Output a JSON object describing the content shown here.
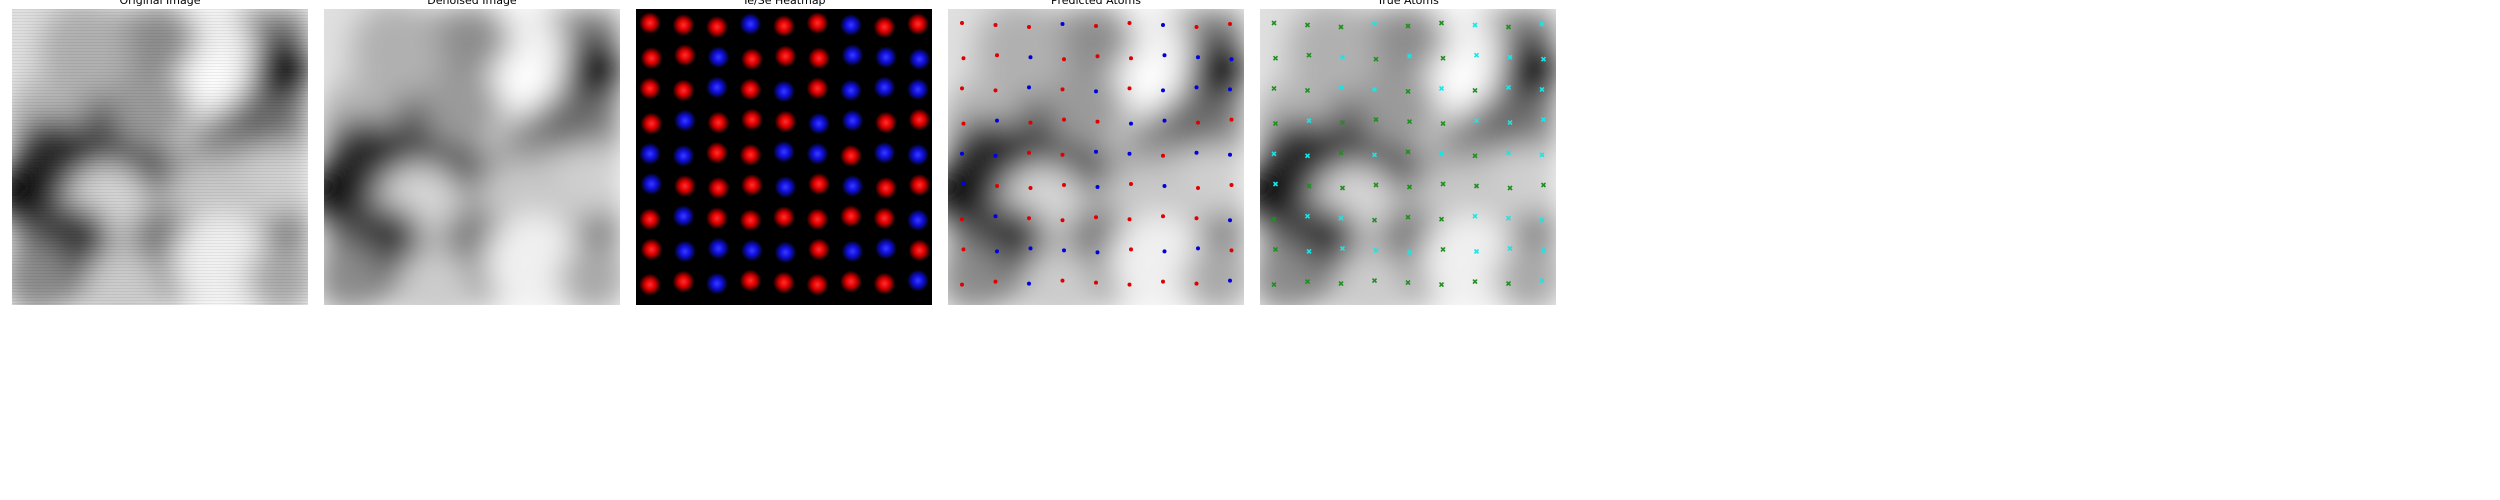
{
  "panels": [
    {
      "key": "original",
      "title": "Original Image"
    },
    {
      "key": "denoised",
      "title": "Denoised Image"
    },
    {
      "key": "heatmap",
      "title": "Te/Se Heatmap"
    },
    {
      "key": "predicted",
      "title": "Predicted Atoms"
    },
    {
      "key": "truth",
      "title": "True Atoms"
    }
  ],
  "lattice": {
    "rows": 9,
    "cols": 9,
    "heatmap_species": [
      [
        "Te",
        "Te",
        "Te",
        "Se",
        "Te",
        "Te",
        "Se",
        "Te",
        "Te"
      ],
      [
        "Te",
        "Te",
        "Se",
        "Te",
        "Te",
        "Te",
        "Se",
        "Se",
        "Se"
      ],
      [
        "Te",
        "Te",
        "Se",
        "Te",
        "Se",
        "Te",
        "Se",
        "Se",
        "Se"
      ],
      [
        "Te",
        "Se",
        "Te",
        "Te",
        "Te",
        "Se",
        "Se",
        "Te",
        "Te"
      ],
      [
        "Se",
        "Se",
        "Te",
        "Te",
        "Se",
        "Se",
        "Te",
        "Se",
        "Se"
      ],
      [
        "Se",
        "Te",
        "Te",
        "Te",
        "Se",
        "Te",
        "Se",
        "Te",
        "Te"
      ],
      [
        "Te",
        "Se",
        "Te",
        "Te",
        "Te",
        "Te",
        "Te",
        "Te",
        "Se"
      ],
      [
        "Te",
        "Se",
        "Se",
        "Se",
        "Se",
        "Te",
        "Se",
        "Se",
        "Te"
      ],
      [
        "Te",
        "Te",
        "Se",
        "Te",
        "Te",
        "Te",
        "Te",
        "Te",
        "Se"
      ]
    ],
    "true_species": [
      [
        "G",
        "G",
        "G",
        "C",
        "G",
        "G",
        "C",
        "G",
        "C"
      ],
      [
        "G",
        "G",
        "C",
        "G",
        "C",
        "G",
        "C",
        "C",
        "C"
      ],
      [
        "G",
        "G",
        "C",
        "C",
        "G",
        "C",
        "G",
        "C",
        "C"
      ],
      [
        "G",
        "C",
        "G",
        "G",
        "G",
        "G",
        "C",
        "C",
        "C"
      ],
      [
        "C",
        "C",
        "G",
        "C",
        "G",
        "C",
        "G",
        "C",
        "C"
      ],
      [
        "C",
        "G",
        "G",
        "G",
        "G",
        "G",
        "G",
        "G",
        "G"
      ],
      [
        "G",
        "C",
        "C",
        "G",
        "G",
        "G",
        "C",
        "C",
        "C"
      ],
      [
        "G",
        "C",
        "C",
        "C",
        "C",
        "G",
        "C",
        "C",
        "C"
      ],
      [
        "G",
        "G",
        "G",
        "G",
        "G",
        "G",
        "G",
        "G",
        "C"
      ]
    ]
  },
  "colors": {
    "te": "#ff1a1a",
    "se": "#2020ff",
    "heatmap_bg": "#000000",
    "pred_te": "#e00000",
    "pred_se": "#0000dd",
    "true_a": "#1f8f1f",
    "true_b": "#18e6e6"
  }
}
